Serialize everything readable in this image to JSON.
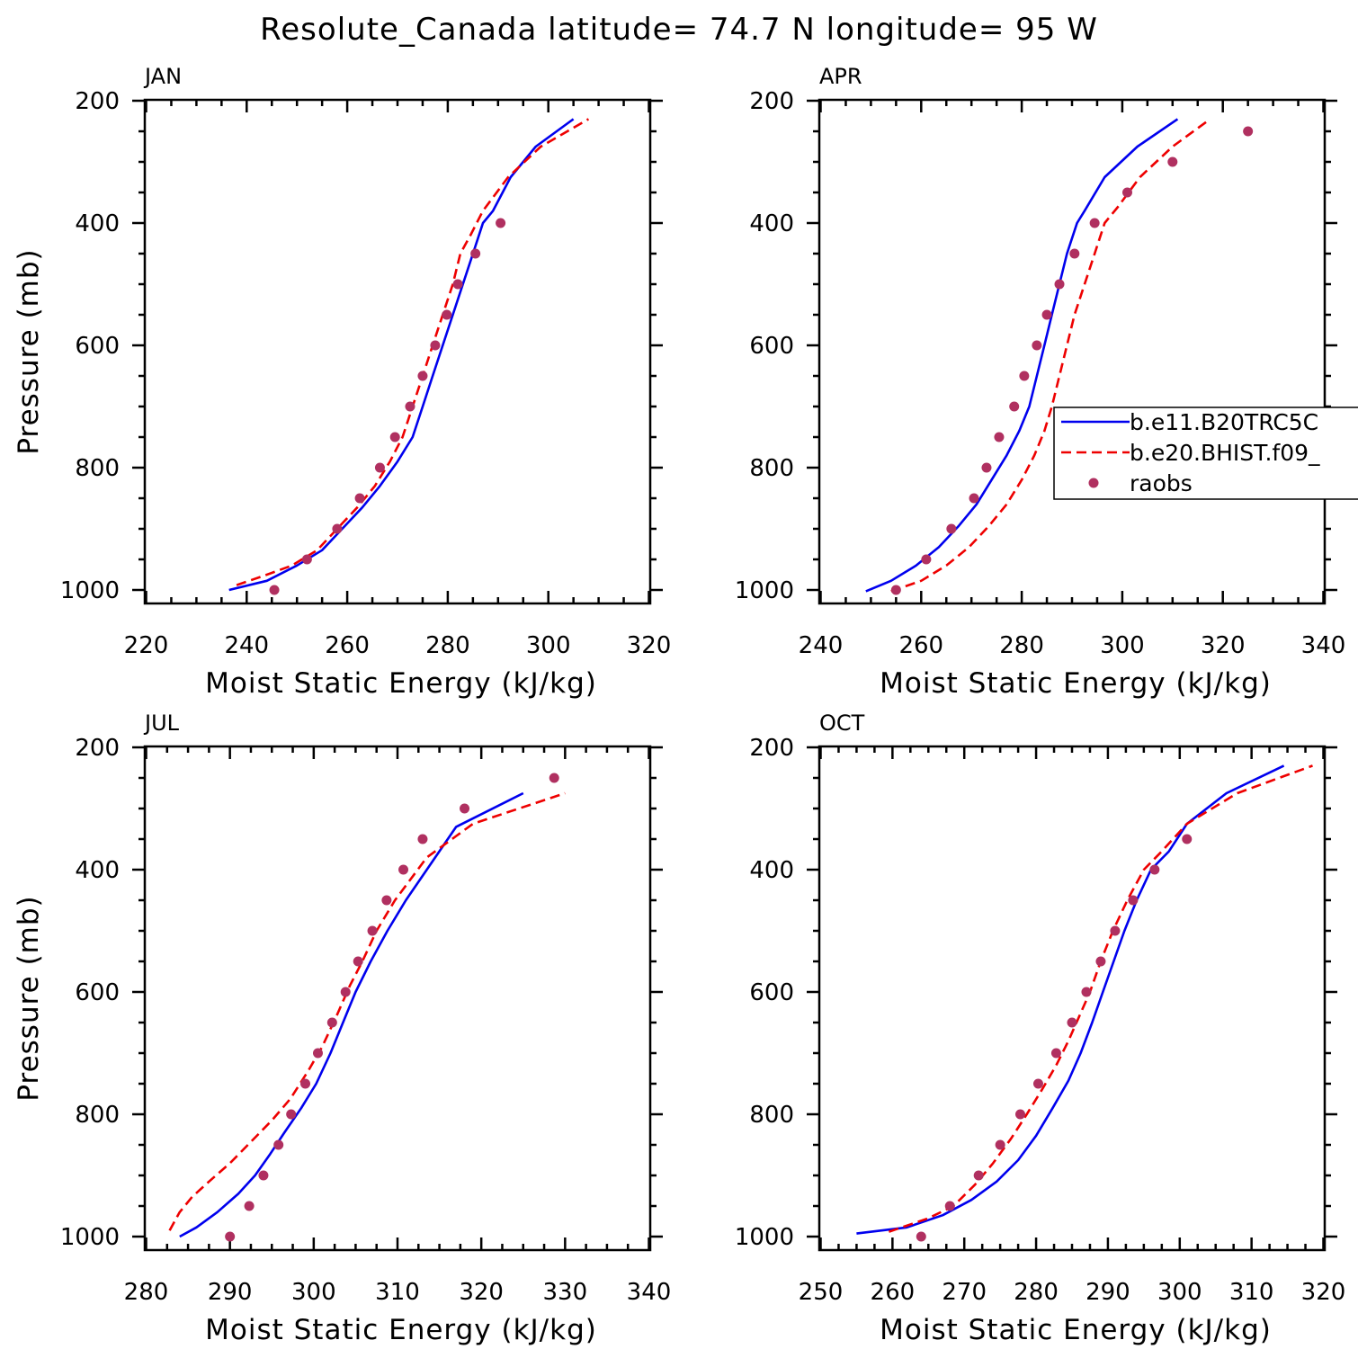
{
  "figure": {
    "title": "Resolute_Canada  latitude= 74.7 N longitude= 95 W"
  },
  "colors": {
    "model1": "#0000ee",
    "model2": "#ee0000",
    "raobs": "#b03060"
  },
  "legend": {
    "items": [
      {
        "label": "b.e11.B20TRC5C",
        "style": "solid-blue"
      },
      {
        "label": "b.e20.BHIST.f09_",
        "style": "dashed-red"
      },
      {
        "label": "raobs",
        "style": "dot"
      }
    ]
  },
  "chart_data": [
    {
      "type": "line",
      "panel": "JAN",
      "title": "JAN",
      "xlabel": "Moist Static Energy (kJ/kg)",
      "ylabel": "Pressure (mb)",
      "xlim": [
        220,
        320
      ],
      "ylim": [
        1000,
        200
      ],
      "xticks": [
        220,
        240,
        260,
        280,
        300,
        320
      ],
      "yticks": [
        200,
        400,
        600,
        800,
        1000
      ],
      "series": [
        {
          "name": "b.e11.B20TRC5C",
          "x": [
            236.5,
            244,
            250,
            255,
            259,
            263,
            266.5,
            270,
            273,
            275,
            277,
            279,
            281,
            283,
            285,
            287,
            289,
            292.5,
            297.5,
            305
          ],
          "y": [
            1000,
            985,
            960,
            935,
            900,
            865,
            830,
            790,
            750,
            700,
            650,
            600,
            550,
            500,
            450,
            400,
            380,
            325,
            275,
            230
          ]
        },
        {
          "name": "b.e20.BHIST.f09_",
          "x": [
            238,
            244,
            249,
            254,
            258,
            262,
            265.5,
            268.5,
            271,
            273,
            275,
            277,
            279,
            281,
            282.5,
            284.5,
            287,
            292,
            298.5,
            308
          ],
          "y": [
            992,
            975,
            960,
            935,
            900,
            865,
            830,
            790,
            750,
            700,
            650,
            600,
            550,
            500,
            450,
            420,
            380,
            325,
            275,
            230
          ]
        },
        {
          "name": "raobs",
          "x": [
            245.5,
            252,
            258,
            262.5,
            266.5,
            269.5,
            272.5,
            275,
            277.5,
            279.8,
            282,
            285.5,
            290.5
          ],
          "y": [
            1000,
            950,
            900,
            850,
            800,
            750,
            700,
            650,
            600,
            550,
            500,
            450,
            400
          ]
        }
      ]
    },
    {
      "type": "line",
      "panel": "APR",
      "title": "APR",
      "xlabel": "Moist Static Energy (kJ/kg)",
      "ylabel": "",
      "xlim": [
        240,
        340
      ],
      "ylim": [
        1000,
        200
      ],
      "xticks": [
        240,
        260,
        280,
        300,
        320,
        340
      ],
      "yticks": [
        200,
        400,
        600,
        800,
        1000
      ],
      "series": [
        {
          "name": "b.e11.B20TRC5C",
          "x": [
            249,
            254,
            259,
            263.5,
            267.5,
            271,
            274,
            277,
            279.5,
            281.5,
            283,
            284.5,
            286,
            287.5,
            289,
            291,
            292.5,
            296.5,
            303,
            311
          ],
          "y": [
            1002,
            985,
            960,
            930,
            895,
            860,
            820,
            780,
            740,
            700,
            650,
            600,
            550,
            500,
            450,
            400,
            380,
            325,
            275,
            230
          ]
        },
        {
          "name": "b.e20.BHIST.f09_",
          "x": [
            254,
            260,
            265,
            269.5,
            273.5,
            277,
            280,
            282.5,
            284.5,
            286,
            287.5,
            289,
            290.5,
            292.5,
            294.5,
            296.5,
            299,
            303.5,
            310,
            317.5
          ],
          "y": [
            1002,
            985,
            960,
            930,
            895,
            860,
            820,
            780,
            740,
            700,
            650,
            600,
            550,
            500,
            450,
            400,
            375,
            325,
            275,
            230
          ]
        },
        {
          "name": "raobs",
          "x": [
            255,
            261,
            266,
            270.5,
            273,
            275.5,
            278.5,
            280.5,
            283,
            285,
            287.5,
            290.5,
            294.5,
            301,
            310,
            325
          ],
          "y": [
            1000,
            950,
            900,
            850,
            800,
            750,
            700,
            650,
            600,
            550,
            500,
            450,
            400,
            350,
            300,
            250
          ]
        }
      ]
    },
    {
      "type": "line",
      "panel": "JUL",
      "title": "JUL",
      "xlabel": "Moist Static Energy (kJ/kg)",
      "ylabel": "Pressure (mb)",
      "xlim": [
        280,
        340
      ],
      "ylim": [
        1000,
        200
      ],
      "xticks": [
        280,
        290,
        300,
        310,
        320,
        330,
        340
      ],
      "yticks": [
        200,
        400,
        600,
        800,
        1000
      ],
      "series": [
        {
          "name": "b.e11.B20TRC5C",
          "x": [
            284,
            286,
            288.5,
            291,
            293,
            294.8,
            296.5,
            298.5,
            300.3,
            302,
            303.5,
            305,
            306.8,
            308.8,
            311,
            313.5,
            317,
            325
          ],
          "y": [
            1000,
            985,
            960,
            930,
            900,
            865,
            830,
            790,
            750,
            700,
            650,
            600,
            550,
            500,
            450,
            400,
            330,
            275
          ]
        },
        {
          "name": "b.e20.BHIST.f09_",
          "x": [
            282.8,
            284,
            285.5,
            287.5,
            290,
            292.5,
            295,
            297.2,
            299.3,
            301,
            302.7,
            304.3,
            305.8,
            307.5,
            309.7,
            313.5,
            319,
            330
          ],
          "y": [
            990,
            960,
            935,
            910,
            880,
            845,
            810,
            775,
            730,
            690,
            640,
            590,
            550,
            500,
            450,
            380,
            325,
            275
          ]
        },
        {
          "name": "raobs",
          "x": [
            290,
            292.3,
            294,
            295.8,
            297.3,
            299,
            300.5,
            302.2,
            303.8,
            305.3,
            307,
            308.7,
            310.7,
            313,
            318,
            328.7
          ],
          "y": [
            1000,
            950,
            900,
            850,
            800,
            750,
            700,
            650,
            600,
            550,
            500,
            450,
            400,
            350,
            300,
            250
          ]
        }
      ]
    },
    {
      "type": "line",
      "panel": "OCT",
      "title": "OCT",
      "xlabel": "Moist Static Energy (kJ/kg)",
      "ylabel": "",
      "xlim": [
        250,
        320
      ],
      "ylim": [
        1000,
        200
      ],
      "xticks": [
        250,
        260,
        270,
        280,
        290,
        300,
        310,
        320
      ],
      "yticks": [
        200,
        400,
        600,
        800,
        1000
      ],
      "series": [
        {
          "name": "b.e11.B20TRC5C",
          "x": [
            255,
            262,
            267,
            271,
            274.5,
            277.5,
            280,
            282.3,
            284.5,
            286.2,
            287.8,
            289.3,
            290.8,
            292.3,
            294,
            296,
            298.5,
            301,
            306.5,
            314.5
          ],
          "y": [
            995,
            985,
            965,
            940,
            910,
            875,
            835,
            790,
            745,
            700,
            650,
            600,
            550,
            500,
            450,
            400,
            370,
            325,
            275,
            230
          ]
        },
        {
          "name": "b.e20.BHIST.f09_",
          "x": [
            259.5,
            265,
            268.5,
            271.5,
            274,
            276.5,
            278.7,
            280.8,
            282.8,
            284.5,
            286,
            287.5,
            289,
            290.7,
            292.7,
            295,
            297.5,
            301,
            308,
            318.5
          ],
          "y": [
            992,
            970,
            950,
            915,
            880,
            840,
            800,
            760,
            720,
            680,
            640,
            600,
            550,
            500,
            450,
            400,
            370,
            325,
            275,
            230
          ]
        },
        {
          "name": "raobs",
          "x": [
            264,
            268,
            272,
            275,
            277.8,
            280.3,
            282.8,
            285,
            287,
            289,
            291,
            293.5,
            296.5,
            301
          ],
          "y": [
            1000,
            950,
            900,
            850,
            800,
            750,
            700,
            650,
            600,
            550,
            500,
            450,
            400,
            350
          ]
        }
      ]
    }
  ]
}
